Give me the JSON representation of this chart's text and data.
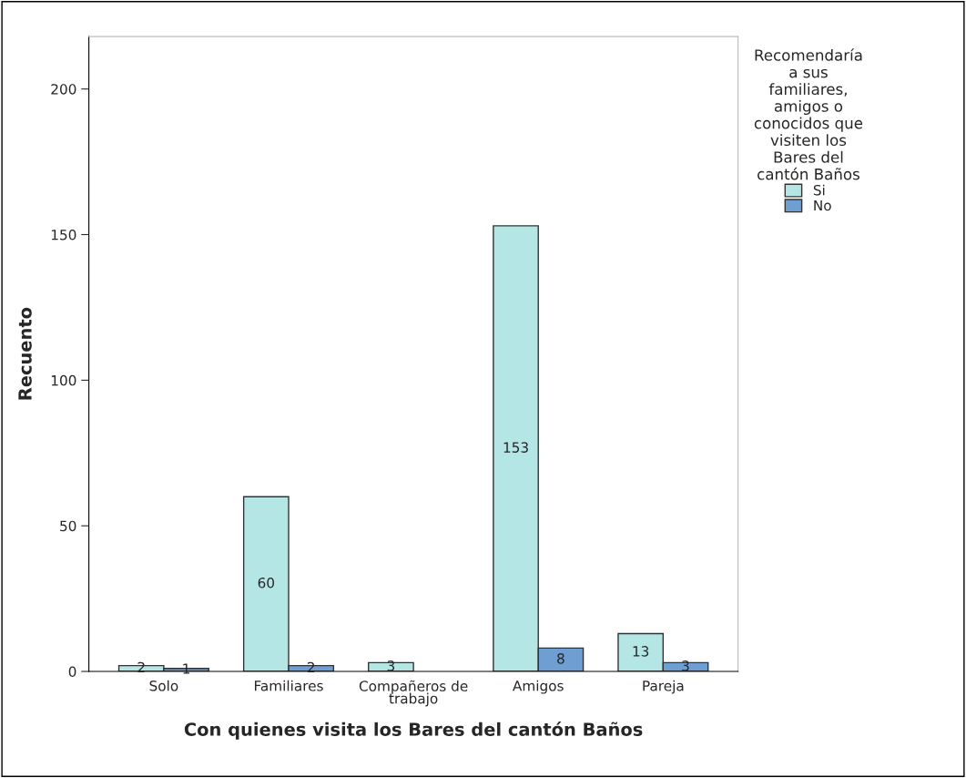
{
  "chart_data": {
    "type": "bar",
    "xlabel": "Con quienes visita los Bares del cantón Baños",
    "ylabel": "Recuento",
    "legend_title": "Recomendaría a sus familiares, amigos o conocidos que visiten los Bares del cantón Baños",
    "categories": [
      "Solo",
      "Familiares",
      "Compañeros de trabajo",
      "Amigos",
      "Pareja"
    ],
    "series": [
      {
        "name": "Si",
        "color": "#b4e6e6",
        "values": [
          2,
          60,
          3,
          153,
          13
        ]
      },
      {
        "name": "No",
        "color": "#6f9fd2",
        "values": [
          1,
          2,
          null,
          8,
          3
        ]
      }
    ],
    "ylim": [
      0,
      218
    ],
    "yticks": [
      0,
      50,
      100,
      150,
      200
    ],
    "data_labels": true,
    "legend": "right",
    "grid": false
  }
}
